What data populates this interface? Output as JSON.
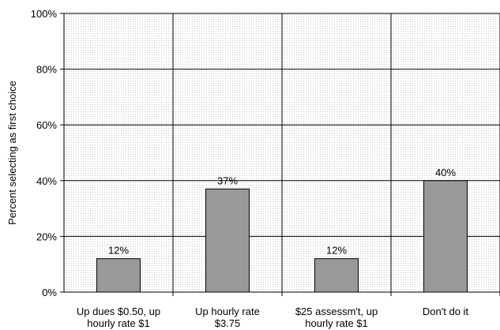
{
  "chart_data": {
    "type": "bar",
    "categories": [
      [
        "Up dues $0.50, up",
        "hourly rate $1"
      ],
      [
        "Up hourly rate",
        "$3.75"
      ],
      [
        "$25 assessm't, up",
        "hourly rate $1"
      ],
      [
        "Don't do it"
      ]
    ],
    "values": [
      12,
      37,
      12,
      40
    ],
    "data_labels": [
      "12%",
      "37%",
      "12%",
      "40%"
    ],
    "ylabel": "Percent selecting as first choice",
    "ylim": [
      0,
      100
    ],
    "yticks": [
      0,
      20,
      40,
      60,
      80,
      100
    ],
    "ytick_labels": [
      "0%",
      "20%",
      "40%",
      "60%",
      "80%",
      "100%"
    ],
    "grid": true,
    "colors": {
      "bar_fill": "#999999",
      "bar_stroke": "#000000",
      "grid": "#000000",
      "plot_bg_dots": "#c8c8c8"
    }
  }
}
